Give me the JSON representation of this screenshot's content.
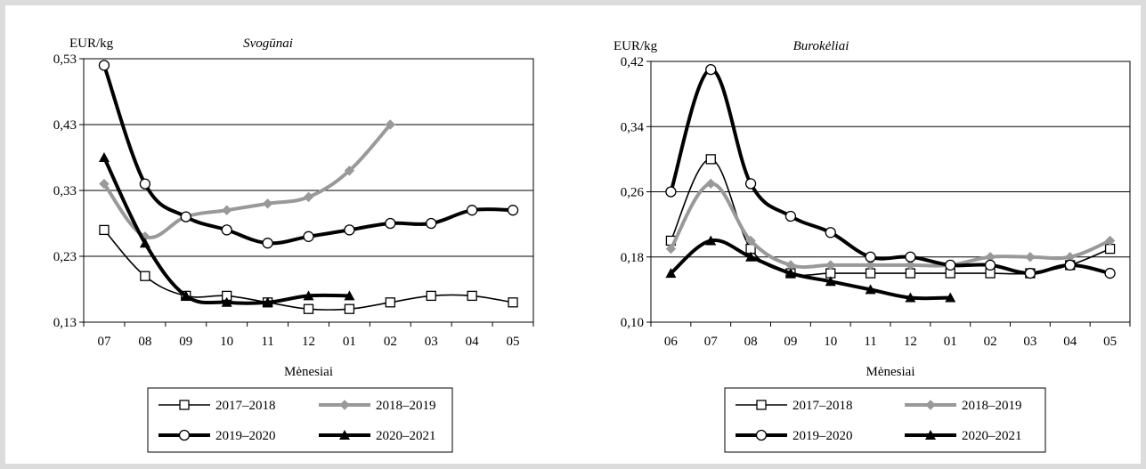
{
  "chart_data": [
    {
      "type": "line",
      "title": "Svogūnai",
      "ylabel": "EUR/kg",
      "xlabel": "Mėnesiai",
      "ylim": [
        0.13,
        0.53
      ],
      "yticks": [
        "0,13",
        "0,23",
        "0,33",
        "0,43",
        "0,53"
      ],
      "categories": [
        "07",
        "08",
        "09",
        "10",
        "11",
        "12",
        "01",
        "02",
        "03",
        "04",
        "05"
      ],
      "grid": "horizontal",
      "legend_position": "bottom",
      "series": [
        {
          "name": "2017–2018",
          "values": [
            0.27,
            0.2,
            0.17,
            0.17,
            0.16,
            0.15,
            0.15,
            0.16,
            0.17,
            0.17,
            0.16
          ]
        },
        {
          "name": "2018–2019",
          "values": [
            0.34,
            0.26,
            0.29,
            0.3,
            0.31,
            0.32,
            0.36,
            0.43,
            null,
            null,
            null
          ]
        },
        {
          "name": "2019–2020",
          "values": [
            0.52,
            0.34,
            0.29,
            0.27,
            0.25,
            0.26,
            0.27,
            0.28,
            0.28,
            0.3,
            0.3
          ]
        },
        {
          "name": "2020–2021",
          "values": [
            0.38,
            0.25,
            0.17,
            0.16,
            0.16,
            0.17,
            0.17,
            null,
            null,
            null,
            null
          ]
        }
      ]
    },
    {
      "type": "line",
      "title": "Burokėliai",
      "ylabel": "EUR/kg",
      "xlabel": "Mėnesiai",
      "ylim": [
        0.1,
        0.42
      ],
      "yticks": [
        "0,10",
        "0,18",
        "0,26",
        "0,34",
        "0,42"
      ],
      "categories": [
        "06",
        "07",
        "08",
        "09",
        "10",
        "11",
        "12",
        "01",
        "02",
        "03",
        "04",
        "05"
      ],
      "grid": "horizontal",
      "legend_position": "bottom",
      "series": [
        {
          "name": "2017–2018",
          "values": [
            0.2,
            0.3,
            0.19,
            0.16,
            0.16,
            0.16,
            0.16,
            0.16,
            0.16,
            0.16,
            0.17,
            0.19
          ]
        },
        {
          "name": "2018–2019",
          "values": [
            0.19,
            0.27,
            0.2,
            0.17,
            0.17,
            0.17,
            0.17,
            0.17,
            0.18,
            0.18,
            0.18,
            0.2
          ]
        },
        {
          "name": "2019–2020",
          "values": [
            0.26,
            0.41,
            0.27,
            0.23,
            0.21,
            0.18,
            0.18,
            0.17,
            0.17,
            0.16,
            0.17,
            0.16
          ]
        },
        {
          "name": "2020–2021",
          "values": [
            0.16,
            0.2,
            0.18,
            0.16,
            0.15,
            0.14,
            0.13,
            0.13,
            null,
            null,
            null,
            null
          ]
        }
      ]
    }
  ],
  "series_styles": [
    {
      "color": "#000000",
      "marker": "square-open",
      "weight": "thin"
    },
    {
      "color": "#999999",
      "marker": "diamond",
      "weight": "thick"
    },
    {
      "color": "#000000",
      "marker": "circle-open",
      "weight": "thick"
    },
    {
      "color": "#000000",
      "marker": "triangle",
      "weight": "thick"
    }
  ]
}
